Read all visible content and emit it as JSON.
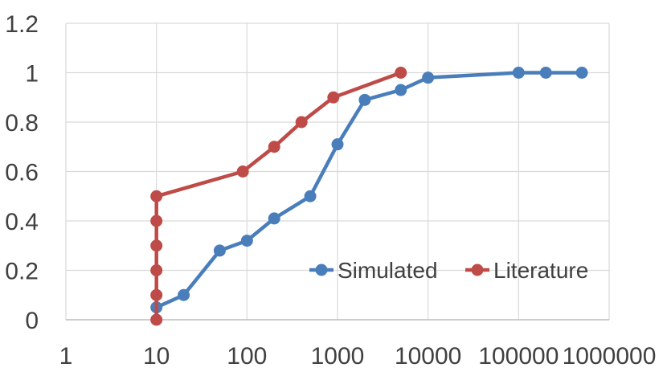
{
  "chart_data": {
    "type": "line",
    "x_scale": "log",
    "xlim": [
      1,
      1000000
    ],
    "ylim": [
      0,
      1.2
    ],
    "x_ticks": [
      1,
      10,
      100,
      1000,
      10000,
      100000,
      1000000
    ],
    "x_tick_labels": [
      "1",
      "10",
      "100",
      "1000",
      "10000",
      "100000",
      "1000000"
    ],
    "y_ticks": [
      0,
      0.2,
      0.4,
      0.6,
      0.8,
      1,
      1.2
    ],
    "y_tick_labels": [
      "0",
      "0.2",
      "0.4",
      "0.6",
      "0.8",
      "1",
      "1.2"
    ],
    "grid": true,
    "legend": "bottom-right",
    "series": [
      {
        "name": "Simulated",
        "color": "#4a7ebb",
        "points": [
          {
            "x": 10,
            "y": 0.05
          },
          {
            "x": 20,
            "y": 0.1
          },
          {
            "x": 50,
            "y": 0.28
          },
          {
            "x": 100,
            "y": 0.32
          },
          {
            "x": 200,
            "y": 0.41
          },
          {
            "x": 500,
            "y": 0.5
          },
          {
            "x": 1000,
            "y": 0.71
          },
          {
            "x": 2000,
            "y": 0.89
          },
          {
            "x": 5000,
            "y": 0.93
          },
          {
            "x": 10000,
            "y": 0.98
          },
          {
            "x": 100000,
            "y": 1.0
          },
          {
            "x": 200000,
            "y": 1.0
          },
          {
            "x": 500000,
            "y": 1.0
          }
        ]
      },
      {
        "name": "Literature",
        "color": "#be4b48",
        "points": [
          {
            "x": 10,
            "y": 0.0
          },
          {
            "x": 10,
            "y": 0.1
          },
          {
            "x": 10,
            "y": 0.2
          },
          {
            "x": 10,
            "y": 0.3
          },
          {
            "x": 10,
            "y": 0.4
          },
          {
            "x": 10,
            "y": 0.5
          },
          {
            "x": 90,
            "y": 0.6
          },
          {
            "x": 200,
            "y": 0.7
          },
          {
            "x": 400,
            "y": 0.8
          },
          {
            "x": 900,
            "y": 0.9
          },
          {
            "x": 5000,
            "y": 1.0
          }
        ]
      }
    ]
  }
}
